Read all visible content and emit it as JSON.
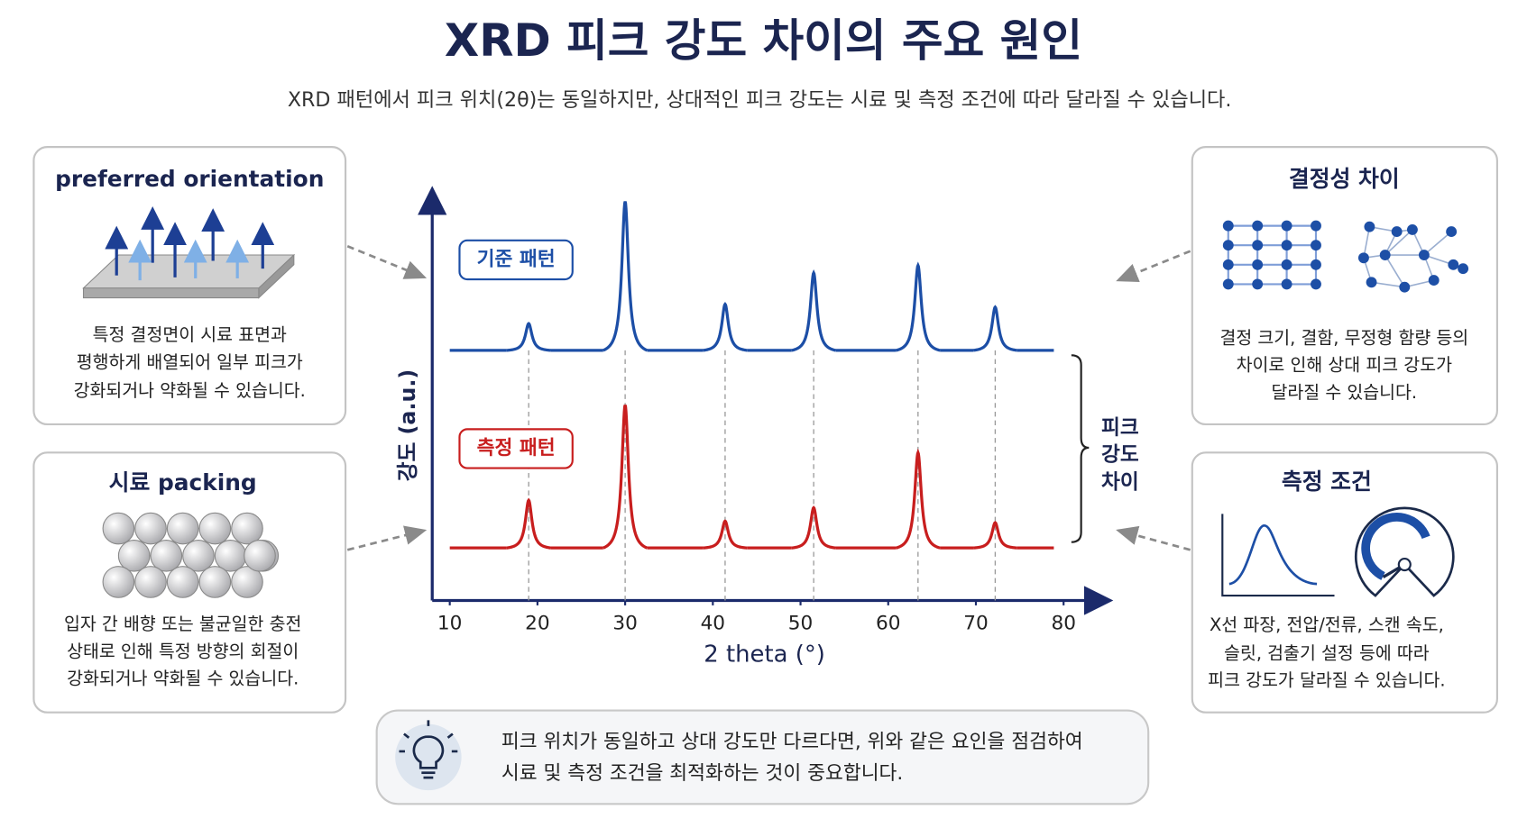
{
  "header": {
    "title": "XRD 피크 강도 차이의 주요 원인",
    "subtitle": "XRD 패턴에서 피크 위치(2θ)는 동일하지만, 상대적인 피크 강도는 시료 및 측정 조건에 따라 달라질 수 있습니다."
  },
  "panels": [
    {
      "title": "preferred orientation",
      "lines": [
        "특정 결정면이 시료 표면과",
        "평행하게 배열되어 일부 피크가",
        "강화되거나 약화될 수 있습니다."
      ]
    },
    {
      "title": "시료 packing",
      "lines": [
        "입자 간 배향 또는 불균일한 충전",
        "상태로 인해 특정 방향의 회절이",
        "강화되거나 약화될 수 있습니다."
      ]
    },
    {
      "title": "결정성 차이",
      "lines": [
        "결정 크기, 결함, 무정형 함량 등의",
        "차이로 인해 상대 피크 강도가",
        "달라질 수 있습니다."
      ]
    },
    {
      "title": "측정 조건",
      "lines": [
        "X선 파장, 전압/전류, 스캔 속도,",
        "슬릿, 검출기 설정 등에 따라",
        "피크 강도가 달라질 수 있습니다."
      ]
    }
  ],
  "chart_data": {
    "type": "line",
    "x_label": "2 theta (°)",
    "y_label": "강도 (a.u.)",
    "xlim": [
      8,
      85
    ],
    "xticks": [
      10,
      20,
      30,
      40,
      50,
      60,
      70,
      80
    ],
    "series": [
      {
        "name": "기준 패턴",
        "color": "#1c4ea6",
        "x": [
          19,
          30,
          41.4,
          51.5,
          63.4,
          72.2
        ],
        "values": [
          18,
          100,
          31,
          52,
          57,
          29
        ]
      },
      {
        "name": "측정 패턴",
        "color": "#c81e1e",
        "x": [
          19,
          30,
          41.4,
          51.5,
          63.4,
          72.2
        ],
        "values": [
          32,
          96,
          18,
          27,
          64,
          17
        ]
      }
    ],
    "annotation": [
      "피크",
      "강도",
      "차이"
    ]
  },
  "footer": {
    "lines": [
      "피크 위치가 동일하고 상대 강도만 다르다면, 위와 같은 요인을 점검하여",
      "시료 및 측정 조건을 최적화하는 것이 중요합니다."
    ]
  }
}
